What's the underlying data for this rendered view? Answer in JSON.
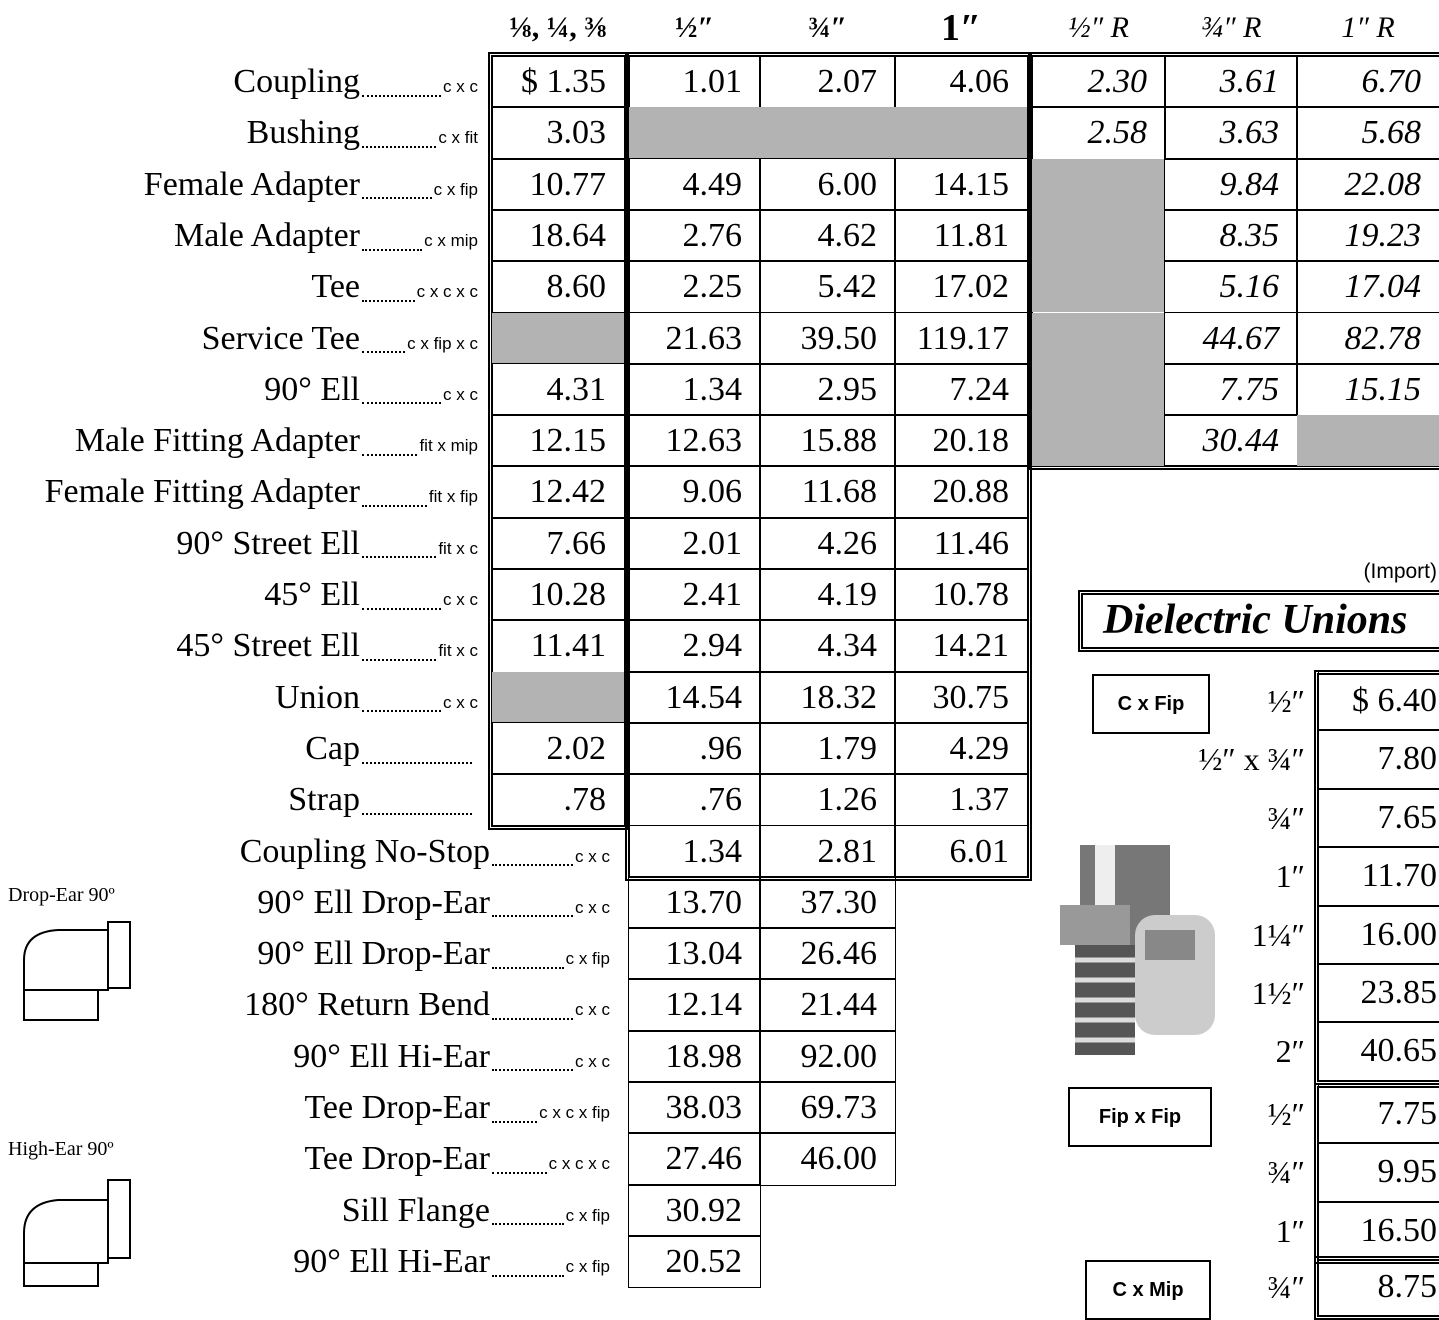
{
  "columns": [
    "⅛, ¼, ⅜",
    "½″",
    "¾″",
    "1″",
    "½″ R",
    "¾″ R",
    "1″ R"
  ],
  "rows": [
    {
      "name": "Coupling",
      "fit": "c x c",
      "prices": [
        "$ 1.35",
        "1.01",
        "2.07",
        "4.06",
        "2.30",
        "3.61",
        "6.70"
      ]
    },
    {
      "name": "Bushing",
      "fit": "c x fit",
      "prices": [
        "3.03",
        null,
        null,
        null,
        "2.58",
        "3.63",
        "5.68"
      ]
    },
    {
      "name": "Female Adapter",
      "fit": "c x fip",
      "prices": [
        "10.77",
        "4.49",
        "6.00",
        "14.15",
        null,
        "9.84",
        "22.08"
      ]
    },
    {
      "name": "Male Adapter",
      "fit": "c x mip",
      "prices": [
        "18.64",
        "2.76",
        "4.62",
        "11.81",
        null,
        "8.35",
        "19.23"
      ]
    },
    {
      "name": "Tee",
      "fit": "c x c x c",
      "prices": [
        "8.60",
        "2.25",
        "5.42",
        "17.02",
        null,
        "5.16",
        "17.04"
      ]
    },
    {
      "name": "Service Tee",
      "fit": "c x fip x c",
      "prices": [
        null,
        "21.63",
        "39.50",
        "119.17",
        null,
        "44.67",
        "82.78"
      ]
    },
    {
      "name": "90° Ell",
      "fit": "c x c",
      "prices": [
        "4.31",
        "1.34",
        "2.95",
        "7.24",
        null,
        "7.75",
        "15.15"
      ]
    },
    {
      "name": "Male Fitting Adapter",
      "fit": "fit x mip",
      "prices": [
        "12.15",
        "12.63",
        "15.88",
        "20.18",
        null,
        "30.44",
        null
      ]
    },
    {
      "name": "Female Fitting Adapter",
      "fit": "fit x fip",
      "prices": [
        "12.42",
        "9.06",
        "11.68",
        "20.88"
      ]
    },
    {
      "name": "90° Street Ell",
      "fit": "fit x c",
      "prices": [
        "7.66",
        "2.01",
        "4.26",
        "11.46"
      ]
    },
    {
      "name": "45° Ell",
      "fit": "c x c",
      "prices": [
        "10.28",
        "2.41",
        "4.19",
        "10.78"
      ]
    },
    {
      "name": "45° Street Ell",
      "fit": "fit x c",
      "prices": [
        "11.41",
        "2.94",
        "4.34",
        "14.21"
      ]
    },
    {
      "name": "Union",
      "fit": "c x c",
      "prices": [
        null,
        "14.54",
        "18.32",
        "30.75"
      ]
    },
    {
      "name": "Cap",
      "prices": [
        "2.02",
        ".96",
        "1.79",
        "4.29"
      ]
    },
    {
      "name": "Strap",
      "prices": [
        ".78",
        ".76",
        "1.26",
        "1.37"
      ]
    }
  ],
  "rows2": [
    {
      "name": "Coupling No-Stop",
      "fit": "c x c",
      "prices": [
        "1.34",
        "2.81",
        "6.01"
      ]
    },
    {
      "name": "90° Ell Drop-Ear",
      "fit": "c x c",
      "prices": [
        "13.70",
        "37.30"
      ]
    },
    {
      "name": "90° Ell Drop-Ear",
      "fit": "c x fip",
      "prices": [
        "13.04",
        "26.46"
      ]
    },
    {
      "name": "180° Return Bend",
      "fit": "c x c",
      "prices": [
        "12.14",
        "21.44"
      ]
    },
    {
      "name": "90° Ell Hi-Ear",
      "fit": "c x c",
      "prices": [
        "18.98",
        "92.00"
      ]
    },
    {
      "name": "Tee Drop-Ear",
      "fit": "c x c x fip",
      "prices": [
        "38.03",
        "69.73"
      ]
    },
    {
      "name": "Tee Drop-Ear",
      "fit": "c x c x c",
      "prices": [
        "27.46",
        "46.00"
      ]
    },
    {
      "name": "Sill Flange",
      "fit": "c x fip",
      "prices": [
        "30.92"
      ]
    },
    {
      "name": "90° Ell Hi-Ear",
      "fit": "c x fip",
      "prices": [
        "20.52"
      ]
    }
  ],
  "illustrations": [
    "Drop-Ear 90º",
    "High-Ear 90º"
  ],
  "dielectric": {
    "note": "(Import)",
    "title": "Dielectric Unions",
    "groups": [
      {
        "label": "C x Fip",
        "items": [
          {
            "size": "½″",
            "price": "$ 6.40"
          },
          {
            "size": "½″ x ¾″",
            "price": "7.80"
          },
          {
            "size": "¾″",
            "price": "7.65"
          },
          {
            "size": "1″",
            "price": "11.70"
          },
          {
            "size": "1¼″",
            "price": "16.00"
          },
          {
            "size": "1½″",
            "price": "23.85"
          },
          {
            "size": "2″",
            "price": "40.65"
          }
        ]
      },
      {
        "label": "Fip x Fip",
        "items": [
          {
            "size": "½″",
            "price": "7.75"
          },
          {
            "size": "¾″",
            "price": "9.95"
          },
          {
            "size": "1″",
            "price": "16.50"
          }
        ]
      },
      {
        "label": "C x Mip",
        "items": [
          {
            "size": "¾″",
            "price": "8.75"
          }
        ]
      }
    ]
  }
}
